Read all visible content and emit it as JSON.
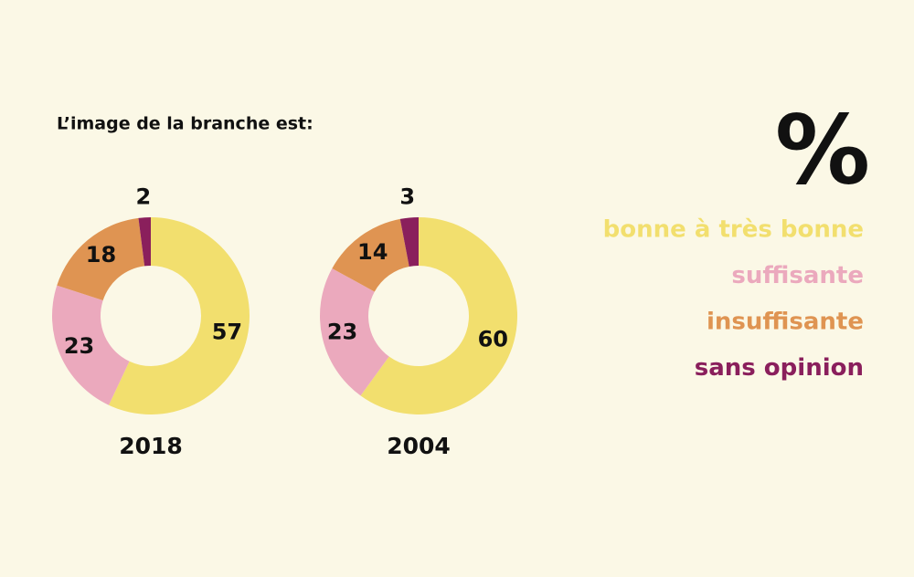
{
  "title": "L’image de la branche est:",
  "unit_symbol": "%",
  "chart_data": [
    {
      "type": "donut",
      "label": "2018",
      "categories": [
        "bonne à très bonne",
        "suffisante",
        "insuffisante",
        "sans opinion"
      ],
      "values": [
        57,
        23,
        18,
        2
      ],
      "colors": [
        "#f2df6e",
        "#eba9bd",
        "#df9452",
        "#8a1f5c"
      ]
    },
    {
      "type": "donut",
      "label": "2004",
      "categories": [
        "bonne à très bonne",
        "suffisante",
        "insuffisante",
        "sans opinion"
      ],
      "values": [
        60,
        23,
        14,
        3
      ],
      "colors": [
        "#f2df6e",
        "#eba9bd",
        "#df9452",
        "#8a1f5c"
      ]
    }
  ]
}
